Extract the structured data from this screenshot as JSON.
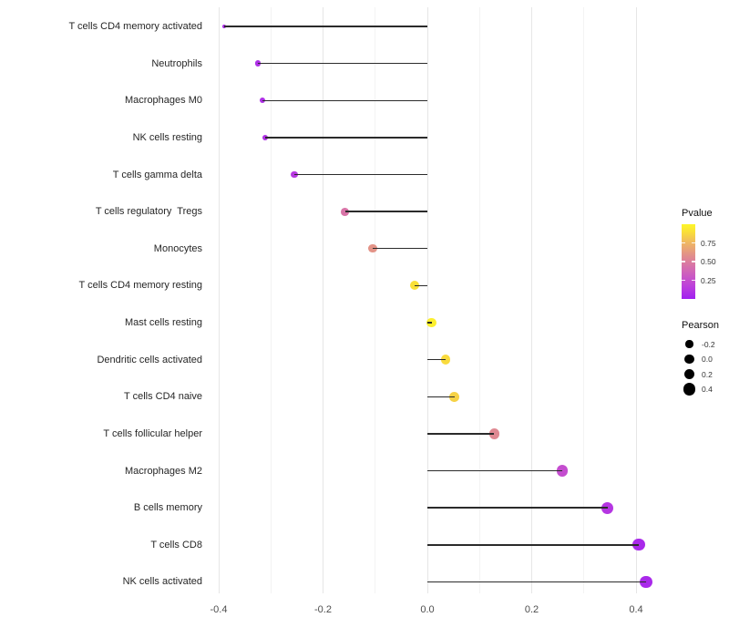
{
  "chart_data": {
    "type": "scatter",
    "subtype": "lollipop",
    "title": "",
    "xlabel": "",
    "ylabel": "",
    "x_ticks": [
      -0.4,
      -0.2,
      0.0,
      0.2,
      0.4
    ],
    "x_tick_labels": [
      "-0.4",
      "-0.2",
      "0.0",
      "0.2",
      "0.4"
    ],
    "x_minor_ticks": [
      -0.3,
      -0.1,
      0.1,
      0.3
    ],
    "xlim": [
      -0.43,
      0.46
    ],
    "baseline": 0.0,
    "grid": true,
    "legend_position": "right",
    "points": [
      {
        "label": "T cells CD4 memory activated",
        "pearson": -0.39,
        "pvalue": 0.07
      },
      {
        "label": "Neutrophils",
        "pearson": -0.325,
        "pvalue": 0.08
      },
      {
        "label": "Macrophages M0",
        "pearson": -0.316,
        "pvalue": 0.08
      },
      {
        "label": "NK cells resting",
        "pearson": -0.311,
        "pvalue": 0.09
      },
      {
        "label": "T cells gamma delta",
        "pearson": -0.255,
        "pvalue": 0.13
      },
      {
        "label": "T cells regulatory  Tregs",
        "pearson": -0.158,
        "pvalue": 0.45
      },
      {
        "label": "Monocytes",
        "pearson": -0.105,
        "pvalue": 0.6
      },
      {
        "label": "T cells CD4 memory resting",
        "pearson": -0.025,
        "pvalue": 0.9
      },
      {
        "label": "Mast cells resting",
        "pearson": 0.008,
        "pvalue": 0.97
      },
      {
        "label": "Dendritic cells activated",
        "pearson": 0.035,
        "pvalue": 0.88
      },
      {
        "label": "T cells CD4 naive",
        "pearson": 0.052,
        "pvalue": 0.85
      },
      {
        "label": "T cells follicular helper",
        "pearson": 0.128,
        "pvalue": 0.55
      },
      {
        "label": "Macrophages M2",
        "pearson": 0.258,
        "pvalue": 0.24
      },
      {
        "label": "B cells memory",
        "pearson": 0.345,
        "pvalue": 0.12
      },
      {
        "label": "T cells CD8",
        "pearson": 0.405,
        "pvalue": 0.05
      },
      {
        "label": "NK cells activated",
        "pearson": 0.419,
        "pvalue": 0.05
      }
    ],
    "legend_pvalue": {
      "title": "Pvalue",
      "tick_labels": [
        "0.75",
        "0.50",
        "0.25"
      ],
      "tick_values": [
        0.75,
        0.5,
        0.25
      ],
      "range": [
        0,
        1
      ],
      "gradient_low_color": "#A020F0",
      "gradient_high_color": "#FDF62A"
    },
    "legend_pearson": {
      "title": "Pearson",
      "entries": [
        {
          "label": "-0.2",
          "value": -0.2
        },
        {
          "label": "0.0",
          "value": 0.0
        },
        {
          "label": "0.2",
          "value": 0.2
        },
        {
          "label": "0.4",
          "value": 0.4
        }
      ]
    },
    "colors": {
      "segment": "#2b2b2b",
      "axis_text": "#4d4d4d",
      "grid_major": "#e6e6e6",
      "grid_minor": "#f3f3f3",
      "background": "#ffffff",
      "legend_dot": "#000000"
    }
  }
}
